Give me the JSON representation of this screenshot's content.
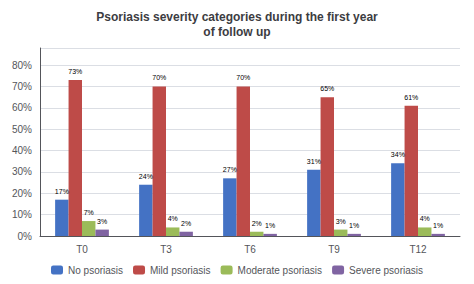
{
  "chart_data": {
    "type": "bar",
    "title": "Psoriasis severity categories during the first year\nof follow up",
    "categories": [
      "T0",
      "T3",
      "T6",
      "T9",
      "T12"
    ],
    "series": [
      {
        "name": "No psoriasis",
        "color": "#4472C4",
        "values": [
          17,
          24,
          27,
          31,
          34
        ],
        "value_labels": [
          "17%",
          "24%",
          "27%",
          "31%",
          "34%"
        ]
      },
      {
        "name": "Mild psoriasis",
        "color": "#BE4B48",
        "values": [
          73,
          70,
          70,
          65,
          61
        ],
        "value_labels": [
          "73%",
          "70%",
          "70%",
          "65%",
          "61%"
        ]
      },
      {
        "name": "Moderate psoriasis",
        "color": "#9BBB59",
        "values": [
          7,
          4,
          2,
          3,
          4
        ],
        "value_labels": [
          "7%",
          "4%",
          "2%",
          "3%",
          "4%"
        ]
      },
      {
        "name": "Severe psoriasis",
        "color": "#8064A2",
        "values": [
          3,
          2,
          1,
          1,
          1
        ],
        "value_labels": [
          "3%",
          "2%",
          "1%",
          "1%",
          "1%"
        ]
      }
    ],
    "ylim": [
      0,
      88
    ],
    "yticks": [
      {
        "value": 0,
        "label": "0%"
      },
      {
        "value": 10,
        "label": "10%"
      },
      {
        "value": 20,
        "label": "20%"
      },
      {
        "value": 30,
        "label": "30%"
      },
      {
        "value": 40,
        "label": "40%"
      },
      {
        "value": 50,
        "label": "50%"
      },
      {
        "value": 60,
        "label": "60%"
      },
      {
        "value": 70,
        "label": "70%"
      },
      {
        "value": 80,
        "label": "80%"
      }
    ],
    "grid": true,
    "legend": "bottom",
    "data_labels": true
  }
}
